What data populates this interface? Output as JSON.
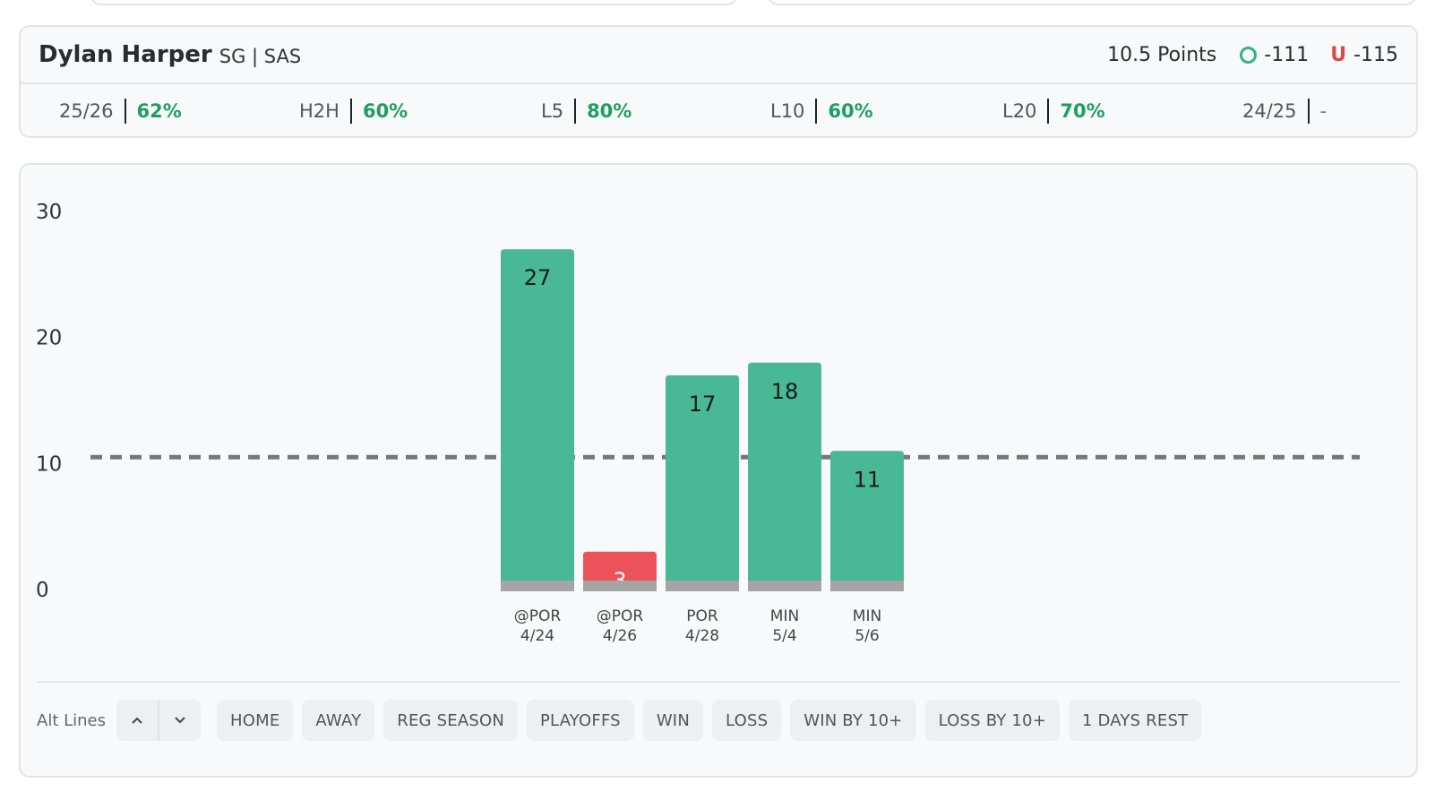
{
  "player": {
    "name": "Dylan Harper",
    "meta": "SG | SAS",
    "prop_line": "10.5 Points",
    "over_odds": "-111",
    "under_label": "U",
    "under_odds": "-115"
  },
  "stats": [
    {
      "label": "25/26",
      "value": "62%"
    },
    {
      "label": "H2H",
      "value": "60%"
    },
    {
      "label": "L5",
      "value": "80%"
    },
    {
      "label": "L10",
      "value": "60%"
    },
    {
      "label": "L20",
      "value": "70%"
    },
    {
      "label": "24/25",
      "value": "-"
    }
  ],
  "colors": {
    "over": "#48b994",
    "under": "#ec5358",
    "base": "#a5a5a5",
    "line": "#777777",
    "accent_text": "#1e9e62"
  },
  "chart_data": {
    "type": "bar",
    "categories": [
      [
        "@POR",
        "4/24"
      ],
      [
        "@POR",
        "4/26"
      ],
      [
        "POR",
        "4/28"
      ],
      [
        "MIN",
        "5/4"
      ],
      [
        "MIN",
        "5/6"
      ]
    ],
    "values": [
      27,
      3,
      17,
      18,
      11
    ],
    "line": 10.5,
    "ylim": [
      0,
      30
    ],
    "yticks": [
      "0",
      "10",
      "20",
      "30"
    ]
  },
  "footer": {
    "alt_lines_label": "Alt Lines",
    "filters": [
      "HOME",
      "AWAY",
      "REG SEASON",
      "PLAYOFFS",
      "WIN",
      "LOSS",
      "WIN BY 10+",
      "LOSS BY 10+",
      "1 DAYS REST"
    ]
  }
}
